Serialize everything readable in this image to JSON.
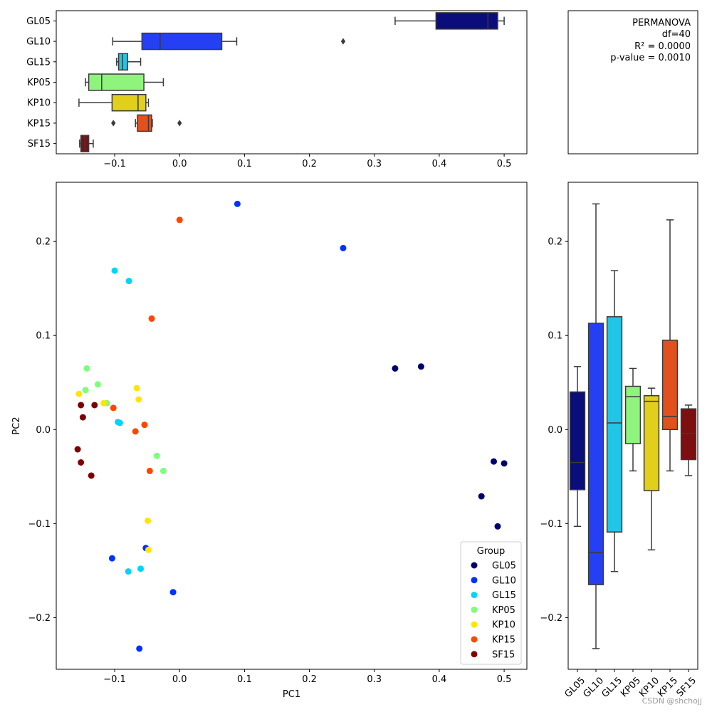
{
  "chart_data": [
    {
      "id": "top",
      "type": "box",
      "orientation": "horizontal",
      "value_axis": "PC1",
      "groups": [
        "GL05",
        "GL10",
        "GL15",
        "KP05",
        "KP10",
        "KP15",
        "SF15"
      ],
      "colors": [
        "#0b0d7a",
        "#2440f2",
        "#21c6e6",
        "#8ef47c",
        "#e2cf1c",
        "#e2501e",
        "#7c0f10"
      ],
      "boxes": [
        {
          "group": "GL05",
          "whislo": 0.332,
          "q1": 0.395,
          "med": 0.475,
          "q3": 0.49,
          "whishi": 0.5,
          "fliers": []
        },
        {
          "group": "GL10",
          "whislo": -0.103,
          "q1": -0.058,
          "med": -0.03,
          "q3": 0.065,
          "whishi": 0.088,
          "fliers": [
            0.252
          ]
        },
        {
          "group": "GL15",
          "whislo": -0.097,
          "q1": -0.094,
          "med": -0.088,
          "q3": -0.08,
          "whishi": -0.06,
          "fliers": []
        },
        {
          "group": "KP05",
          "whislo": -0.145,
          "q1": -0.14,
          "med": -0.12,
          "q3": -0.055,
          "whishi": -0.025,
          "fliers": []
        },
        {
          "group": "KP10",
          "whislo": -0.155,
          "q1": -0.104,
          "med": -0.064,
          "q3": -0.052,
          "whishi": -0.048,
          "fliers": []
        },
        {
          "group": "KP15",
          "whislo": -0.068,
          "q1": -0.065,
          "med": -0.048,
          "q3": -0.043,
          "whishi": -0.042,
          "fliers": [
            -0.102,
            0.0
          ]
        },
        {
          "group": "SF15",
          "whislo": -0.154,
          "q1": -0.152,
          "med": -0.146,
          "q3": -0.14,
          "whishi": -0.133,
          "fliers": []
        }
      ],
      "xlim": [
        -0.19,
        0.535
      ],
      "xticks": [
        -0.1,
        0.0,
        0.1,
        0.2,
        0.3,
        0.4,
        0.5
      ],
      "xtick_labels": [
        "−0.1",
        "0.0",
        "0.1",
        "0.2",
        "0.3",
        "0.4",
        "0.5"
      ]
    },
    {
      "id": "scatter",
      "type": "scatter",
      "title": "",
      "xlabel": "PC1",
      "ylabel": "PC2",
      "xlim": [
        -0.19,
        0.535
      ],
      "ylim": [
        -0.255,
        0.263
      ],
      "xticks": [
        -0.1,
        0.0,
        0.1,
        0.2,
        0.3,
        0.4,
        0.5
      ],
      "xtick_labels": [
        "−0.1",
        "0.0",
        "0.1",
        "0.2",
        "0.3",
        "0.4",
        "0.5"
      ],
      "yticks": [
        -0.2,
        -0.1,
        0.0,
        0.1,
        0.2
      ],
      "ytick_labels": [
        "−0.2",
        "−0.1",
        "0.0",
        "0.1",
        "0.2"
      ],
      "legend": {
        "title": "Group",
        "position": "bottom-right",
        "entries": [
          "GL05",
          "GL10",
          "GL15",
          "KP05",
          "KP10",
          "KP15",
          "SF15"
        ]
      },
      "series": [
        {
          "name": "GL05",
          "color": "#00006f",
          "points": [
            [
              0.332,
              0.065
            ],
            [
              0.372,
              0.067
            ],
            [
              0.484,
              -0.034
            ],
            [
              0.5,
              -0.036
            ],
            [
              0.465,
              -0.071
            ],
            [
              0.49,
              -0.103
            ]
          ]
        },
        {
          "name": "GL10",
          "color": "#0032ff",
          "points": [
            [
              0.089,
              0.24
            ],
            [
              0.252,
              0.193
            ],
            [
              -0.104,
              -0.137
            ],
            [
              -0.052,
              -0.126
            ],
            [
              -0.01,
              -0.173
            ],
            [
              -0.062,
              -0.233
            ]
          ]
        },
        {
          "name": "GL15",
          "color": "#00d4ff",
          "points": [
            [
              -0.1,
              0.169
            ],
            [
              -0.078,
              0.158
            ],
            [
              -0.095,
              0.008
            ],
            [
              -0.092,
              0.007
            ],
            [
              -0.079,
              -0.151
            ],
            [
              -0.06,
              -0.148
            ]
          ]
        },
        {
          "name": "KP05",
          "color": "#7dff7a",
          "points": [
            [
              -0.143,
              0.065
            ],
            [
              -0.126,
              0.048
            ],
            [
              -0.145,
              0.042
            ],
            [
              -0.112,
              0.028
            ],
            [
              -0.035,
              -0.028
            ],
            [
              -0.025,
              -0.044
            ]
          ]
        },
        {
          "name": "KP10",
          "color": "#ffe600",
          "points": [
            [
              -0.155,
              0.038
            ],
            [
              -0.066,
              0.044
            ],
            [
              -0.063,
              0.032
            ],
            [
              -0.117,
              0.028
            ],
            [
              -0.049,
              -0.097
            ],
            [
              -0.048,
              -0.128
            ]
          ]
        },
        {
          "name": "KP15",
          "color": "#ff4500",
          "points": [
            [
              0.0,
              0.223
            ],
            [
              -0.043,
              0.118
            ],
            [
              -0.102,
              0.023
            ],
            [
              -0.054,
              0.005
            ],
            [
              -0.068,
              -0.002
            ],
            [
              -0.046,
              -0.044
            ]
          ]
        },
        {
          "name": "SF15",
          "color": "#7f0000",
          "points": [
            [
              -0.152,
              0.026
            ],
            [
              -0.131,
              0.026
            ],
            [
              -0.149,
              0.013
            ],
            [
              -0.157,
              -0.021
            ],
            [
              -0.152,
              -0.035
            ],
            [
              -0.136,
              -0.049
            ]
          ]
        }
      ]
    },
    {
      "id": "right",
      "type": "box",
      "orientation": "vertical",
      "value_axis": "PC2",
      "groups": [
        "GL05",
        "GL10",
        "GL15",
        "KP05",
        "KP10",
        "KP15",
        "SF15"
      ],
      "colors": [
        "#0b0d7a",
        "#2440f2",
        "#21c6e6",
        "#8ef47c",
        "#e2cf1c",
        "#e2501e",
        "#7c0f10"
      ],
      "boxes": [
        {
          "group": "GL05",
          "whislo": -0.103,
          "q1": -0.064,
          "med": -0.035,
          "q3": 0.04,
          "whishi": 0.067,
          "fliers": []
        },
        {
          "group": "GL10",
          "whislo": -0.233,
          "q1": -0.165,
          "med": -0.131,
          "q3": 0.113,
          "whishi": 0.24,
          "fliers": []
        },
        {
          "group": "GL15",
          "whislo": -0.151,
          "q1": -0.109,
          "med": 0.007,
          "q3": 0.12,
          "whishi": 0.169,
          "fliers": []
        },
        {
          "group": "KP05",
          "whislo": -0.044,
          "q1": -0.015,
          "med": 0.035,
          "q3": 0.046,
          "whishi": 0.065,
          "fliers": []
        },
        {
          "group": "KP10",
          "whislo": -0.128,
          "q1": -0.065,
          "med": 0.03,
          "q3": 0.036,
          "whishi": 0.044,
          "fliers": []
        },
        {
          "group": "KP15",
          "whislo": -0.044,
          "q1": 0.0,
          "med": 0.014,
          "q3": 0.095,
          "whishi": 0.223,
          "fliers": []
        },
        {
          "group": "SF15",
          "whislo": -0.049,
          "q1": -0.032,
          "med": -0.004,
          "q3": 0.022,
          "whishi": 0.026,
          "fliers": []
        }
      ],
      "ylim": [
        -0.255,
        0.263
      ],
      "yticks": [
        -0.2,
        -0.1,
        0.0,
        0.1,
        0.2
      ],
      "ytick_labels": [
        "−0.2",
        "−0.1",
        "0.0",
        "0.1",
        "0.2"
      ],
      "xtick_labels": [
        "GL05",
        "GL10",
        "GL15",
        "KP05",
        "KP10",
        "KP15",
        "SF15"
      ]
    }
  ],
  "stats_panel": {
    "lines": [
      "PERMANOVA",
      "df=40",
      "R² = 0.0000",
      "p-value = 0.0010"
    ]
  },
  "watermark": "CSDN @shchojj"
}
